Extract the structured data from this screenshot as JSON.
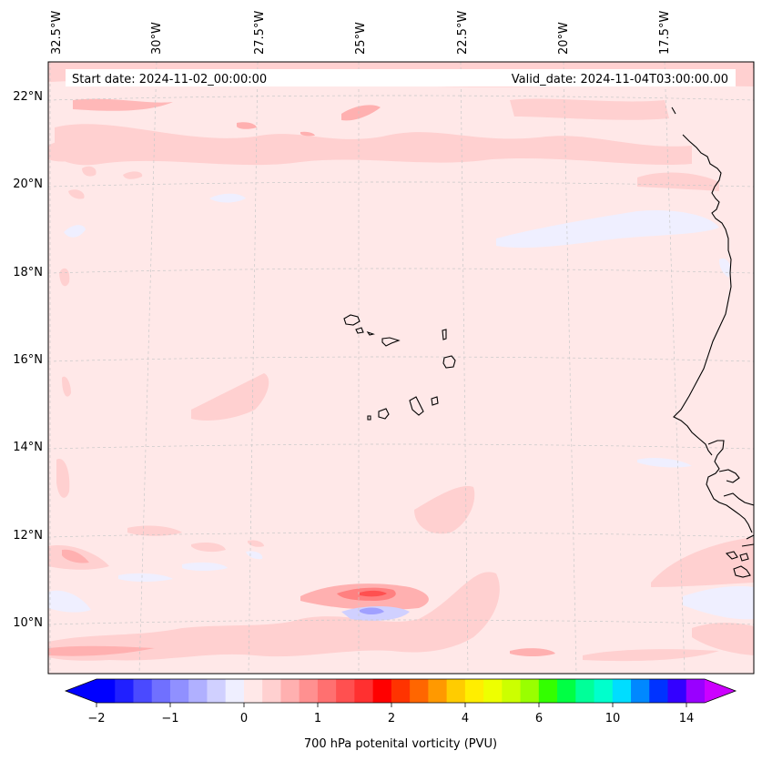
{
  "map": {
    "start_date": "Start date: 2024-11-02_00:00:00",
    "valid_date": "Valid_date: 2024-11-04T03:00:00.00",
    "lon_labels": [
      "32.5°W",
      "30°W",
      "27.5°W",
      "25°W",
      "22.5°W",
      "20°W",
      "17.5°W"
    ],
    "lat_labels": [
      "22°N",
      "20°N",
      "18°N",
      "16°N",
      "14°N",
      "12°N",
      "10°N"
    ],
    "variable": "700 hPa potential vorticity",
    "units": "PVU"
  },
  "colorbar": {
    "label": "700 hPa potenital vorticity (PVU)",
    "tick_labels": [
      "−2",
      "−1",
      "0",
      "1",
      "2",
      "4",
      "6",
      "10",
      "14"
    ],
    "colors": [
      "#0000ff",
      "#2020ff",
      "#4a4aff",
      "#7070ff",
      "#9090ff",
      "#b0b0ff",
      "#d0d0ff",
      "#efefff",
      "#ffe8e8",
      "#ffd0d0",
      "#ffb0b0",
      "#ff9090",
      "#ff7070",
      "#ff5050",
      "#ff3030",
      "#ff0000",
      "#ff3300",
      "#ff6600",
      "#ff9900",
      "#ffcc00",
      "#ffee00",
      "#eeff00",
      "#ccff00",
      "#99ff00",
      "#33ff00",
      "#00ff44",
      "#00ff99",
      "#00ffcc",
      "#00ddff",
      "#0088ff",
      "#0033ff",
      "#3300ff",
      "#9900ff"
    ],
    "extend_low_color": "#0000ff",
    "extend_high_color": "#cc00ff"
  },
  "colors": {
    "background_field": "#ffe8e8",
    "coastline": "#000000",
    "gridline": "#bbbbbb"
  }
}
